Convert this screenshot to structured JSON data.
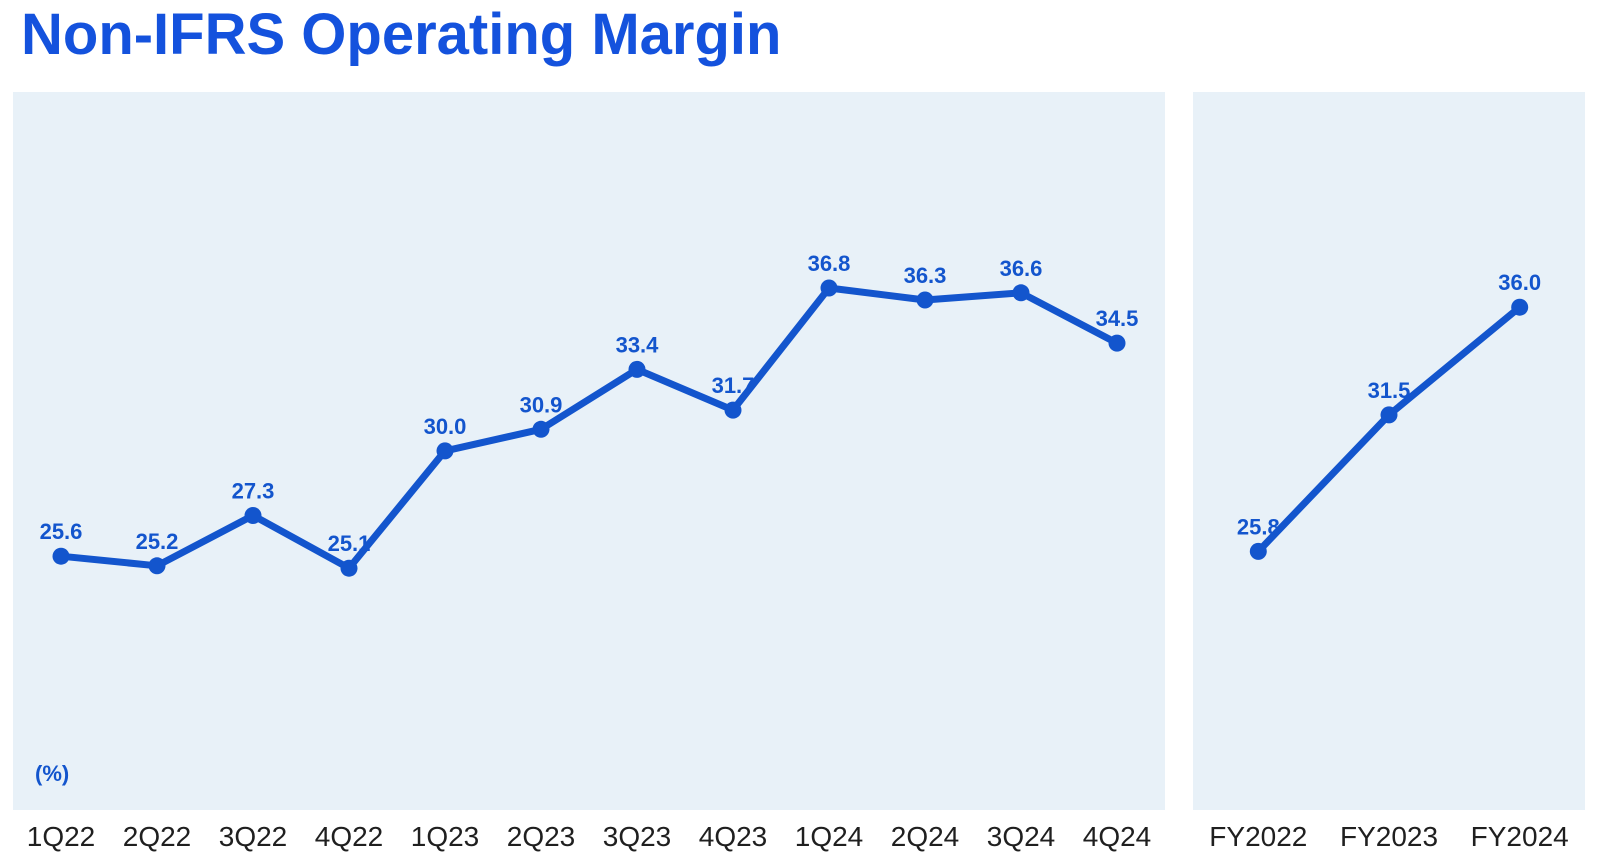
{
  "title": "Non-IFRS Operating Margin",
  "colors": {
    "accent_blue": "#1355cd",
    "title_blue": "#1452dd",
    "panel_bg": "#e8f1f8",
    "axis_label_color": "#1f1f1f"
  },
  "chart_data": [
    {
      "type": "line",
      "name": "quarterly-operating-margin",
      "categories": [
        "1Q22",
        "2Q22",
        "3Q22",
        "4Q22",
        "1Q23",
        "2Q23",
        "3Q23",
        "4Q23",
        "1Q24",
        "2Q24",
        "3Q24",
        "4Q24"
      ],
      "values": [
        25.6,
        25.2,
        27.3,
        25.1,
        30.0,
        30.9,
        33.4,
        31.7,
        36.8,
        36.3,
        36.6,
        34.5
      ],
      "unit_label": "(%)",
      "ylim": [
        15,
        45
      ],
      "grid": false,
      "legend": false,
      "data_labels": true
    },
    {
      "type": "line",
      "name": "annual-operating-margin",
      "categories": [
        "FY2022",
        "FY2023",
        "FY2024"
      ],
      "values": [
        25.8,
        31.5,
        36.0
      ],
      "unit_label": "",
      "ylim": [
        15,
        45
      ],
      "grid": false,
      "legend": false,
      "data_labels": true
    }
  ]
}
